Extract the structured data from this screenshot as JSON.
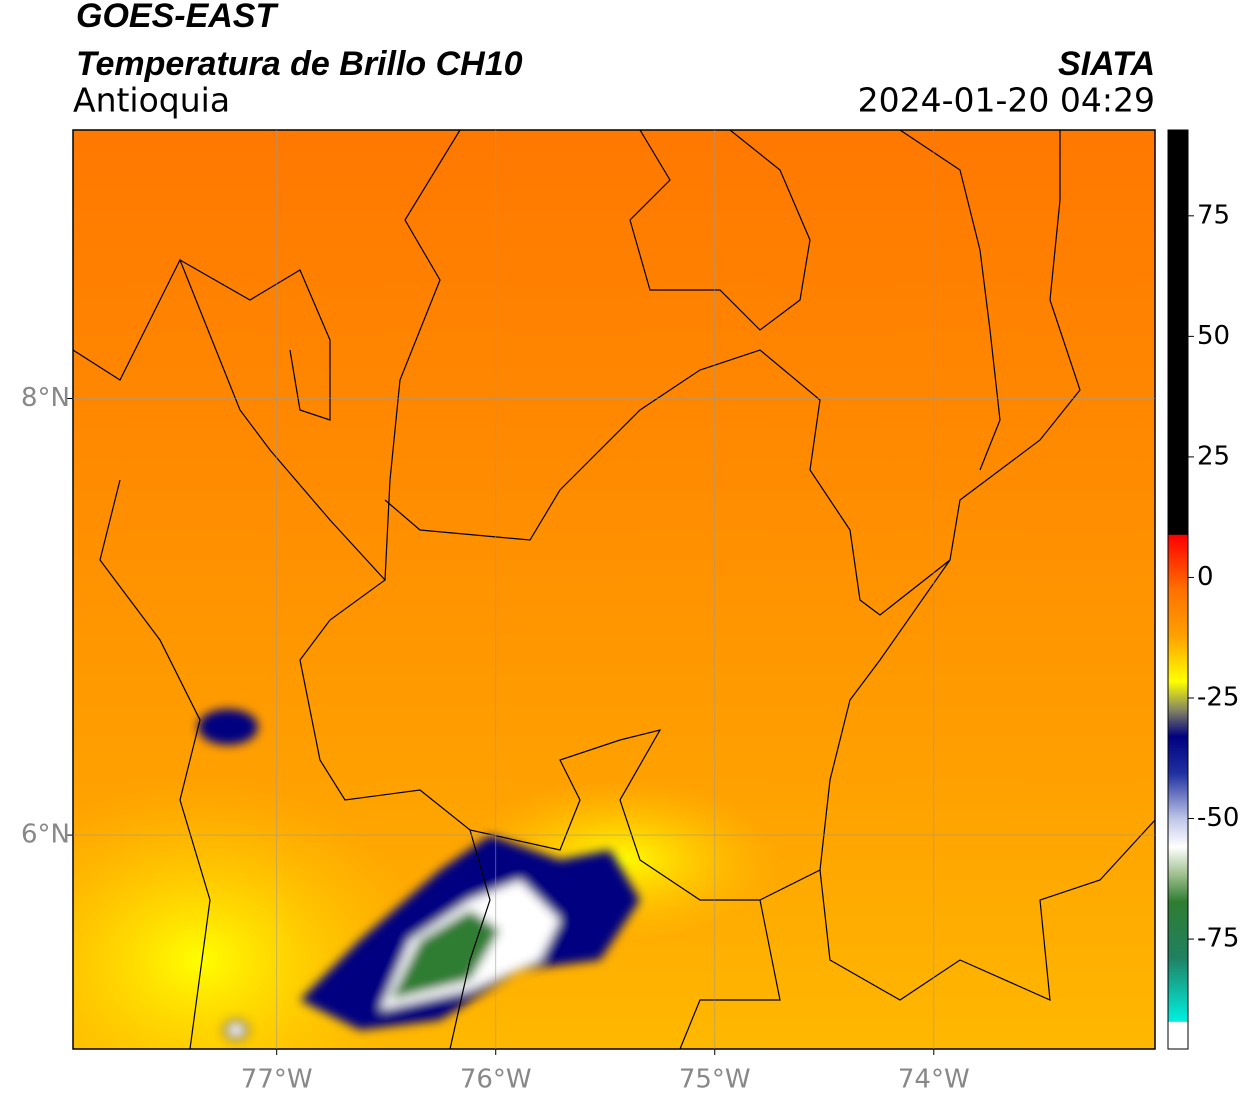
{
  "header": {
    "title": "GOES-EAST",
    "subtitle": "Temperatura de Brillo CH10",
    "region": "Antioquia",
    "source": "SIATA",
    "datetime": "2024-01-20 04:29"
  },
  "map": {
    "lon_range": [
      -77.93,
      -72.99
    ],
    "lat_range": [
      5.02,
      9.23
    ],
    "lon_ticks": [
      {
        "value": -77,
        "label": "77°W"
      },
      {
        "value": -76,
        "label": "76°W"
      },
      {
        "value": -75,
        "label": "75°W"
      },
      {
        "value": -74,
        "label": "74°W"
      }
    ],
    "lat_ticks": [
      {
        "value": 8,
        "label": "8°N"
      },
      {
        "value": 6,
        "label": "6°N"
      }
    ]
  },
  "colorbar": {
    "range": [
      -97.8,
      92.8
    ],
    "ticks": [
      75,
      50,
      25,
      0,
      -25,
      -50,
      -75
    ]
  }
}
